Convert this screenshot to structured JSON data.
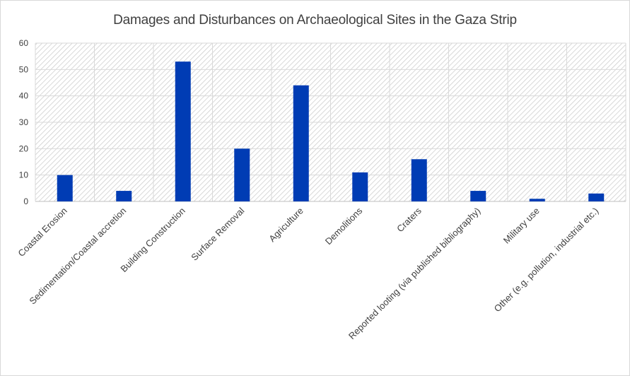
{
  "chart_data": {
    "type": "bar",
    "title": "Damages and Disturbances on Archaeological Sites in the Gaza Strip",
    "categories": [
      "Coastal Erosion",
      "Sedimentation/Coastal accretion",
      "Building Construction",
      "Surface Removal",
      "Agriculture",
      "Demolitions",
      "Craters",
      "Reported looting (via published bibliography)",
      "Military use",
      "Other (e.g. pollution, industrial etc.)"
    ],
    "values": [
      10,
      4,
      53,
      20,
      44,
      11,
      16,
      4,
      1,
      3
    ],
    "ylim": [
      0,
      60
    ],
    "yticks": [
      0,
      10,
      20,
      30,
      40,
      50,
      60
    ],
    "xlabel": "",
    "ylabel": "",
    "grid": true,
    "legend": "none",
    "bar_color": "#003cb4",
    "plot_background": "hatched light gray"
  }
}
